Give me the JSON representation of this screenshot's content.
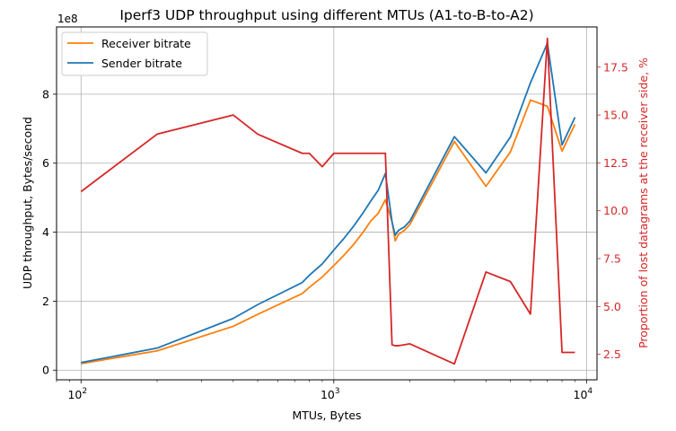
{
  "chart_data": {
    "type": "line",
    "title": "Iperf3 UDP throughput using different MTUs (A1-to-B-to-A2)",
    "xlabel": "MTUs, Bytes",
    "ylabel": "UDP throughput, Bytes/second",
    "y2label": "Proportion of lost datagrams at the receiver side, %",
    "x_scale": "log",
    "xlim": [
      80,
      11000
    ],
    "ylim": [
      -28000000.0,
      995000000.0
    ],
    "y2lim": [
      1.17,
      19.6
    ],
    "y_offset_label": "1e8",
    "x_ticks": [
      {
        "value": 100,
        "base": "10",
        "exp": "2"
      },
      {
        "value": 1000,
        "base": "10",
        "exp": "3"
      },
      {
        "value": 10000,
        "base": "10",
        "exp": "4"
      }
    ],
    "y_ticks": [
      {
        "value": 0,
        "label": "0"
      },
      {
        "value": 200000000,
        "label": "2"
      },
      {
        "value": 400000000,
        "label": "4"
      },
      {
        "value": 600000000,
        "label": "6"
      },
      {
        "value": 800000000,
        "label": "8"
      }
    ],
    "y2_ticks": [
      {
        "value": 2.5,
        "label": "2.5"
      },
      {
        "value": 5.0,
        "label": "5.0"
      },
      {
        "value": 7.5,
        "label": "7.5"
      },
      {
        "value": 10.0,
        "label": "10.0"
      },
      {
        "value": 12.5,
        "label": "12.5"
      },
      {
        "value": 15.0,
        "label": "15.0"
      },
      {
        "value": 17.5,
        "label": "17.5"
      }
    ],
    "grid": true,
    "legend_position": "top-left",
    "series": [
      {
        "name": "Receiver bitrate",
        "axis": "left",
        "color": "#ff7f0e",
        "x": [
          100,
          200,
          400,
          500,
          750,
          800,
          900,
          1000,
          1100,
          1200,
          1300,
          1400,
          1500,
          1600,
          1700,
          1750,
          1800,
          1900,
          2000,
          3000,
          4000,
          5000,
          6000,
          7000,
          8000,
          9000
        ],
        "y": [
          19000000,
          56000000,
          127000000,
          162000000,
          222000000,
          240000000,
          270000000,
          303000000,
          334000000,
          365000000,
          398000000,
          432000000,
          455000000,
          494000000,
          430000000,
          375000000,
          393000000,
          405000000,
          422000000,
          663000000,
          533000000,
          633000000,
          783000000,
          765000000,
          635000000,
          713000000
        ]
      },
      {
        "name": "Sender bitrate",
        "axis": "left",
        "color": "#1f77b4",
        "x": [
          100,
          200,
          400,
          500,
          750,
          800,
          900,
          1000,
          1100,
          1200,
          1300,
          1400,
          1500,
          1600,
          1700,
          1750,
          1800,
          1900,
          2000,
          3000,
          4000,
          5000,
          6000,
          7000,
          8000,
          9000
        ],
        "y": [
          22000000,
          64000000,
          150000000,
          190000000,
          254000000,
          275000000,
          308000000,
          348000000,
          383000000,
          418000000,
          454000000,
          490000000,
          522000000,
          570000000,
          430000000,
          391000000,
          405000000,
          415000000,
          432000000,
          677000000,
          572000000,
          676000000,
          833000000,
          948000000,
          653000000,
          733000000
        ]
      },
      {
        "axis": "right",
        "color": "#d62728",
        "x": [
          100,
          200,
          400,
          500,
          750,
          800,
          900,
          1000,
          1100,
          1200,
          1300,
          1400,
          1500,
          1600,
          1700,
          1750,
          1800,
          1900,
          2000,
          3000,
          4000,
          5000,
          6000,
          7000,
          8000,
          9000
        ],
        "y": [
          11.0,
          14.0,
          15.0,
          14.0,
          13.0,
          13.0,
          12.3,
          13.0,
          13.0,
          13.0,
          13.0,
          13.0,
          13.0,
          13.0,
          3.0,
          2.95,
          2.95,
          3.0,
          3.05,
          2.0,
          6.8,
          6.3,
          4.6,
          19.0,
          2.6,
          2.6
        ]
      }
    ]
  }
}
